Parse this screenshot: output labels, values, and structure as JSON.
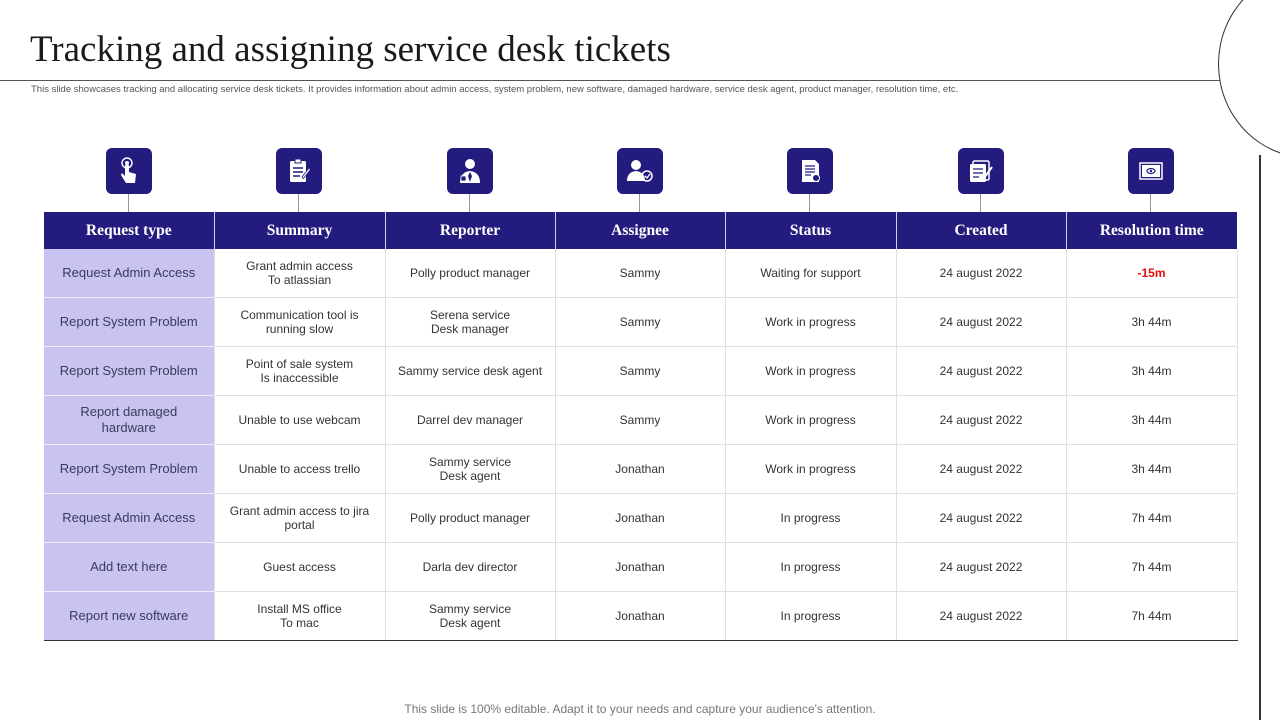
{
  "slide": {
    "title": "Tracking and assigning service desk tickets",
    "subtitle": "This slide showcases tracking and allocating service desk tickets. It provides information about admin access, system problem, new software, damaged hardware, service desk agent, product manager, resolution time, etc.",
    "footer": "This slide is 100% editable. Adapt it to your needs and capture your audience's attention."
  },
  "colors": {
    "header_bg": "#231c7e",
    "first_column_bg": "#c9c3f2",
    "negative_value": "#e01010"
  },
  "icons": [
    "touch-icon",
    "clipboard-icon",
    "reporter-person-icon",
    "assignee-person-icon",
    "status-document-icon",
    "created-notes-icon",
    "resolution-monitor-icon"
  ],
  "table": {
    "headers": [
      "Request type",
      "Summary",
      "Reporter",
      "Assignee",
      "Status",
      "Created",
      "Resolution time"
    ],
    "rows": [
      [
        "Request  Admin Access",
        "Grant admin access\nTo atlassian",
        "Polly product manager",
        "Sammy",
        "Waiting for support",
        "24 august 2022",
        "-15m"
      ],
      [
        "Report System Problem",
        "Communication tool is\nrunning slow",
        "Serena service\nDesk manager",
        "Sammy",
        "Work in progress",
        "24 august 2022",
        "3h 44m"
      ],
      [
        "Report System Problem",
        "Point of sale system\nIs inaccessible",
        "Sammy service desk agent",
        "Sammy",
        "Work in progress",
        "24 august 2022",
        "3h 44m"
      ],
      [
        "Report  damaged\nhardware",
        "Unable to use webcam",
        "Darrel dev manager",
        "Sammy",
        "Work in progress",
        "24 august 2022",
        "3h 44m"
      ],
      [
        "Report System Problem",
        "Unable to access trello",
        "Sammy service\nDesk agent",
        "Jonathan",
        "Work in progress",
        "24 august 2022",
        "3h 44m"
      ],
      [
        "Request  Admin Access",
        "Grant admin access to jira\nportal",
        "Polly product manager",
        "Jonathan",
        "In progress",
        "24 august 2022",
        "7h 44m"
      ],
      [
        "Add text here",
        "Guest access",
        "Darla dev director",
        "Jonathan",
        "In progress",
        "24 august 2022",
        "7h 44m"
      ],
      [
        "Report  new  software",
        "Install MS office\nTo mac",
        "Sammy service\nDesk agent",
        "Jonathan",
        "In progress",
        "24 august 2022",
        "7h 44m"
      ]
    ]
  }
}
